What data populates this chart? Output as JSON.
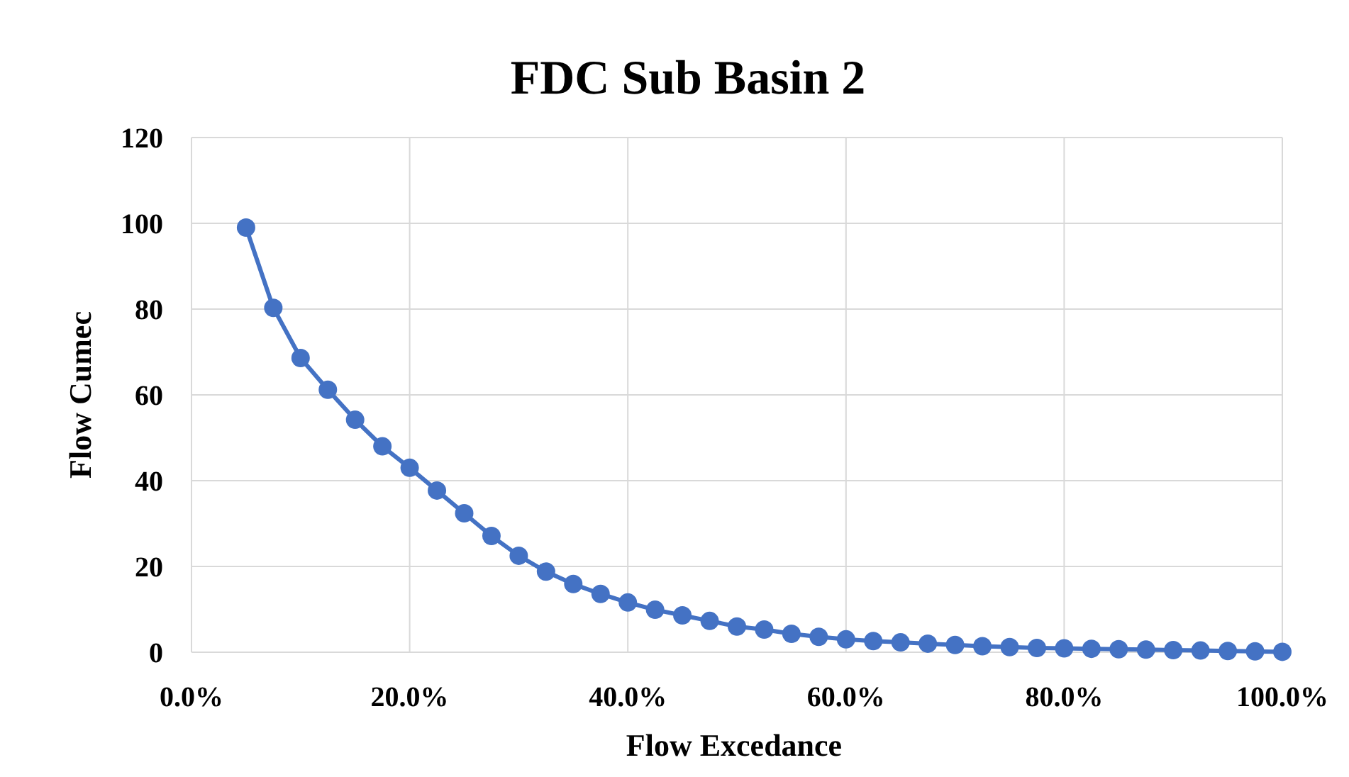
{
  "chart_data": {
    "type": "line",
    "title": "FDC Sub Basin 2",
    "xlabel": "Flow Excedance",
    "ylabel": "Flow Cumec",
    "x": [
      5,
      7.5,
      10,
      12.5,
      15,
      17.5,
      20,
      22.5,
      25,
      27.5,
      30,
      32.5,
      35,
      37.5,
      40,
      42.5,
      45,
      47.5,
      50,
      52.5,
      55,
      57.5,
      60,
      62.5,
      65,
      67.5,
      70,
      72.5,
      75,
      77.5,
      80,
      82.5,
      85,
      87.5,
      90,
      92.5,
      95,
      97.5,
      100
    ],
    "series": [
      {
        "color": "#4472c4",
        "values": [
          99,
          80.3,
          68.6,
          61.2,
          54.2,
          48,
          43,
          37.7,
          32.4,
          27.1,
          22.5,
          18.8,
          15.9,
          13.6,
          11.6,
          9.9,
          8.6,
          7.3,
          6,
          5.3,
          4.3,
          3.6,
          3,
          2.6,
          2.3,
          2,
          1.7,
          1.4,
          1.2,
          1,
          0.9,
          0.8,
          0.7,
          0.6,
          0.5,
          0.4,
          0.3,
          0.2,
          0.1
        ]
      }
    ],
    "xlim": [
      0,
      100
    ],
    "xticks": [
      {
        "value": 0,
        "label": "0.0%"
      },
      {
        "value": 20,
        "label": "20.0%"
      },
      {
        "value": 40,
        "label": "40.0%"
      },
      {
        "value": 60,
        "label": "60.0%"
      },
      {
        "value": 80,
        "label": "80.0%"
      },
      {
        "value": 100,
        "label": "100.0%"
      }
    ],
    "ylim": [
      0,
      120
    ],
    "yticks": [
      0,
      20,
      40,
      60,
      80,
      100,
      120
    ],
    "grid": true,
    "marker": "circle",
    "line_style": "solid"
  }
}
